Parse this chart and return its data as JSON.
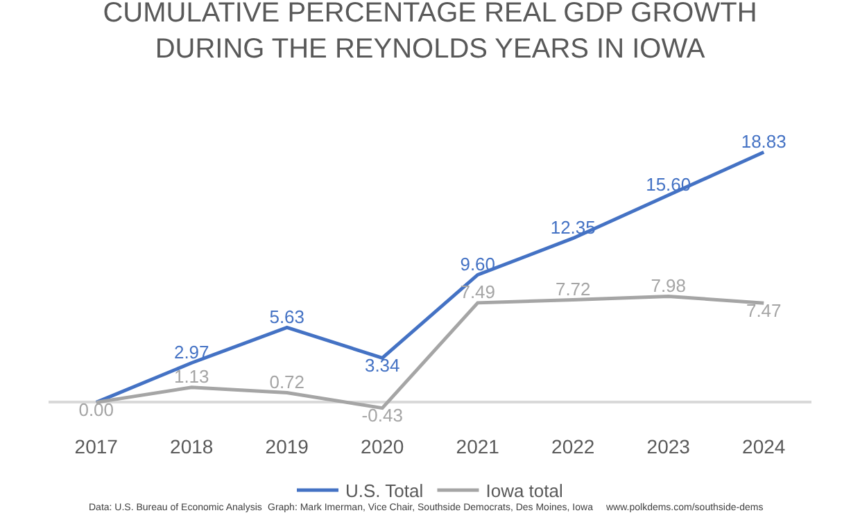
{
  "chart_data": {
    "type": "line",
    "title": "CUMULATIVE PERCENTAGE REAL GDP GROWTH\nDURING THE REYNOLDS YEARS IN IOWA",
    "categories": [
      "2017",
      "2018",
      "2019",
      "2020",
      "2021",
      "2022",
      "2023",
      "2024"
    ],
    "series": [
      {
        "name": "U.S. Total",
        "color": "#4472c4",
        "values": [
          0.0,
          2.97,
          5.63,
          3.34,
          9.6,
          12.35,
          15.6,
          18.83
        ],
        "value_labels": [
          null,
          "2.97",
          "5.63",
          "3.34",
          "9.60",
          "12.35",
          "15.60",
          "18.83"
        ]
      },
      {
        "name": "Iowa total",
        "color": "#a5a5a5",
        "values": [
          0.0,
          1.13,
          0.72,
          -0.43,
          7.49,
          7.72,
          7.98,
          7.47
        ],
        "value_labels": [
          "0.00",
          "1.13",
          "0.72",
          "-0.43",
          "7.49",
          "7.72",
          "7.98",
          "7.47"
        ]
      }
    ],
    "legend": "bottom",
    "marker": "none",
    "line_style": "solid",
    "annotations": [
      "Data: U.S. Bureau of Economic Analysis",
      "Graph: Mark Imerman, Vice Chair, Southside Democrats, Des Moines, Iowa",
      "www.polkdems.com/southside-dems"
    ]
  }
}
